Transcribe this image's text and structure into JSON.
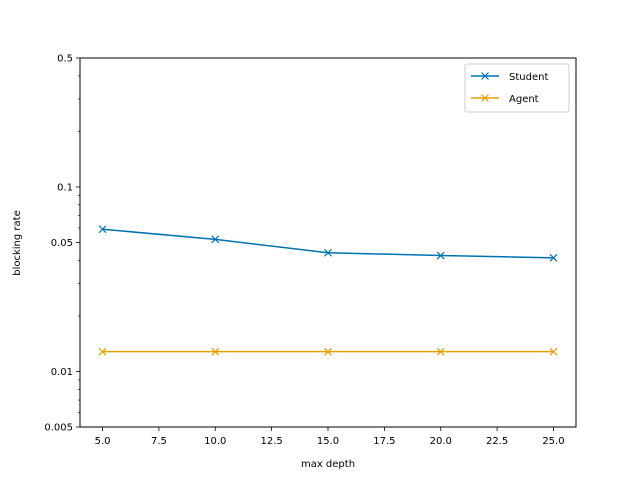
{
  "chart_data": {
    "type": "line",
    "xlabel": "max depth",
    "ylabel": "blocking rate",
    "x": [
      5.0,
      10.0,
      15.0,
      20.0,
      25.0
    ],
    "xlim": [
      4.0,
      26.0
    ],
    "ylim": [
      0.005,
      0.5
    ],
    "y_scale": "log",
    "x_ticks": [
      5.0,
      7.5,
      10.0,
      12.5,
      15.0,
      17.5,
      20.0,
      22.5,
      25.0
    ],
    "x_tick_labels": [
      "5.0",
      "7.5",
      "10.0",
      "12.5",
      "15.0",
      "17.5",
      "20.0",
      "22.5",
      "25.0"
    ],
    "y_ticks": [
      0.005,
      0.01,
      0.05,
      0.1,
      0.5
    ],
    "y_tick_labels": [
      "0.005",
      "0.01",
      "0.05",
      "0.1",
      "0.5"
    ],
    "series": [
      {
        "name": "Student",
        "color": "#0072b2",
        "marker": "x",
        "values": [
          0.059,
          0.052,
          0.044,
          0.0425,
          0.0413
        ]
      },
      {
        "name": "Agent",
        "color": "#e69f00",
        "marker": "x",
        "values": [
          0.0128,
          0.0128,
          0.0128,
          0.0128,
          0.0128
        ]
      }
    ],
    "legend_position": "top-right",
    "grid": false
  }
}
